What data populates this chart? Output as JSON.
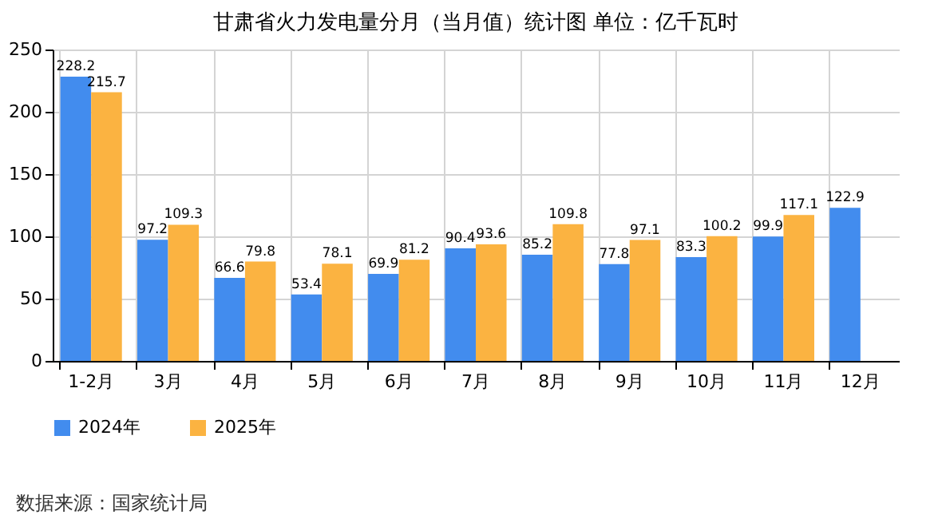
{
  "chart_data": {
    "type": "bar",
    "title": "甘肃省火力发电量分月（当月值）统计图 单位：亿千瓦时",
    "categories": [
      "1-2月",
      "3月",
      "4月",
      "5月",
      "6月",
      "7月",
      "8月",
      "9月",
      "10月",
      "11月",
      "12月"
    ],
    "series": [
      {
        "name": "2024年",
        "color": "#428cee",
        "values": [
          228.2,
          97.2,
          66.6,
          53.4,
          69.9,
          90.4,
          85.2,
          77.8,
          83.3,
          99.9,
          122.9
        ]
      },
      {
        "name": "2025年",
        "color": "#fbb341",
        "values": [
          215.7,
          109.3,
          79.8,
          78.1,
          81.2,
          93.6,
          109.8,
          97.1,
          100.2,
          117.1,
          null
        ]
      }
    ],
    "ylim": [
      0,
      250
    ],
    "yticks": [
      0,
      50,
      100,
      150,
      200,
      250
    ],
    "grid": true,
    "legend": "bottom",
    "data_labels": true,
    "annotations": [
      "数据来源：国家统计局"
    ]
  }
}
